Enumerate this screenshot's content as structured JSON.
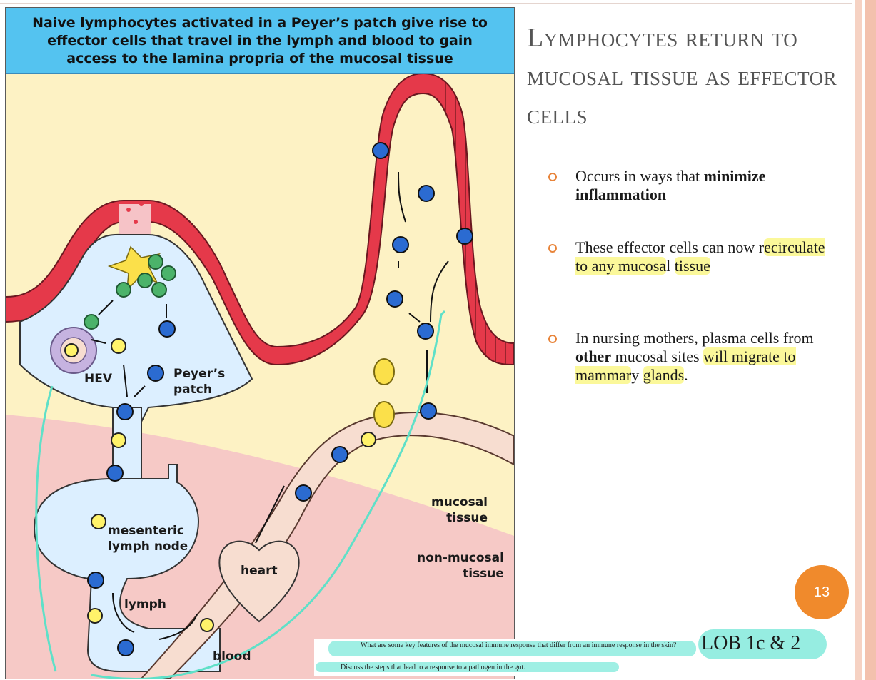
{
  "figure": {
    "title": "Naive lymphocytes activated in a Peyer’s patch give rise to effector cells that travel in the lymph and blood to gain access to the lamina propria of the mucosal tissue",
    "labels": {
      "hev": "HEV",
      "peyers_patch": "Peyer’s\npatch",
      "mesenteric_node": "mesenteric\nlymph node",
      "heart": "heart",
      "lymph": "lymph",
      "blood": "blood",
      "mucosal": "mucosal\ntissue",
      "non_mucosal": "non-mucosal\ntissue"
    },
    "colors": {
      "title_bar": "#54c3f0",
      "epithelium": "#e5394a",
      "lamina_propria": "#fdf2c4",
      "non_mucosal": "#f6c9c6",
      "lymphatic": "#dcefff",
      "vessel": "#f7ddd0",
      "annotation": "#5fe0c8"
    }
  },
  "slide": {
    "title": "Lymphocytes return to mucosal tissue as effector cells",
    "bullets": [
      {
        "parts": [
          {
            "text": "Occurs in ways that ",
            "bold": false,
            "hl": false
          },
          {
            "text": "minimize inflammation",
            "bold": true,
            "hl": false
          }
        ]
      },
      {
        "parts": [
          {
            "text": "These effector cells can now r",
            "bold": false,
            "hl": false
          },
          {
            "text": "ecirculate to any mucosa",
            "bold": false,
            "hl": true
          },
          {
            "text": "l ",
            "bold": false,
            "hl": false
          },
          {
            "text": "tissue",
            "bold": false,
            "hl": true
          }
        ]
      },
      {
        "parts": [
          {
            "text": "In nursing mothers, plasma cells from ",
            "bold": false,
            "hl": false
          },
          {
            "text": "other",
            "bold": true,
            "hl": false
          },
          {
            "text": " mucosal sites ",
            "bold": false,
            "hl": false
          },
          {
            "text": "will migrate to mammar",
            "bold": false,
            "hl": true
          },
          {
            "text": "y ",
            "bold": false,
            "hl": false
          },
          {
            "text": "glands",
            "bold": false,
            "hl": true
          },
          {
            "text": ".",
            "bold": false,
            "hl": false
          }
        ]
      }
    ],
    "page_number": "13",
    "lob": "LOB 1c & 2",
    "notes": [
      "What are some key features of the mucosal immune response that differ from an immune response in the skin?",
      "Discuss the steps that lead to a response to a pathogen in the gut."
    ],
    "bullet_color": "#e8843a",
    "page_number_color": "#f08a2c"
  }
}
